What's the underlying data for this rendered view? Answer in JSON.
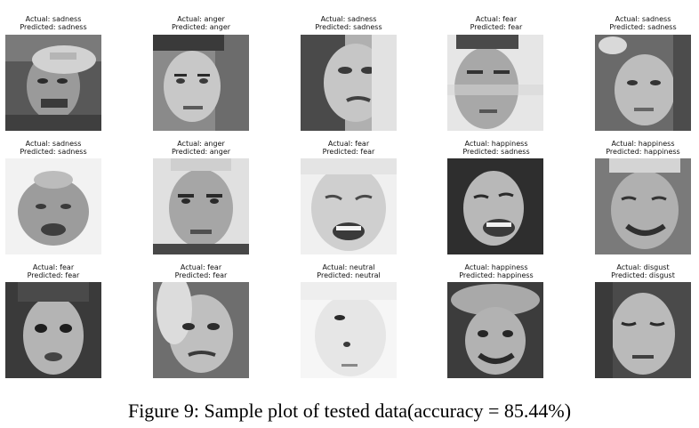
{
  "figure": {
    "caption": "Figure 9: Sample plot of tested data(accuracy = 85.44%)",
    "samples": [
      {
        "actual": "Actual: sadness",
        "predicted": "Predicted: sadness"
      },
      {
        "actual": "Actual: anger",
        "predicted": "Predicted: anger"
      },
      {
        "actual": "Actual: sadness",
        "predicted": "Predicted: sadness"
      },
      {
        "actual": "Actual: fear",
        "predicted": "Predicted: fear"
      },
      {
        "actual": "Actual: sadness",
        "predicted": "Predicted: sadness"
      },
      {
        "actual": "Actual: sadness",
        "predicted": "Predicted: sadness"
      },
      {
        "actual": "Actual: anger",
        "predicted": "Predicted: anger"
      },
      {
        "actual": "Actual: fear",
        "predicted": "Predicted: fear"
      },
      {
        "actual": "Actual: happiness",
        "predicted": "Predicted: sadness"
      },
      {
        "actual": "Actual: happiness",
        "predicted": "Predicted: happiness"
      },
      {
        "actual": "Actual: fear",
        "predicted": "Predicted: fear"
      },
      {
        "actual": "Actual: fear",
        "predicted": "Predicted: fear"
      },
      {
        "actual": "Actual: neutral",
        "predicted": "Predicted: neutral"
      },
      {
        "actual": "Actual: happiness",
        "predicted": "Predicted: happiness"
      },
      {
        "actual": "Actual: disgust",
        "predicted": "Predicted: disgust"
      }
    ]
  }
}
